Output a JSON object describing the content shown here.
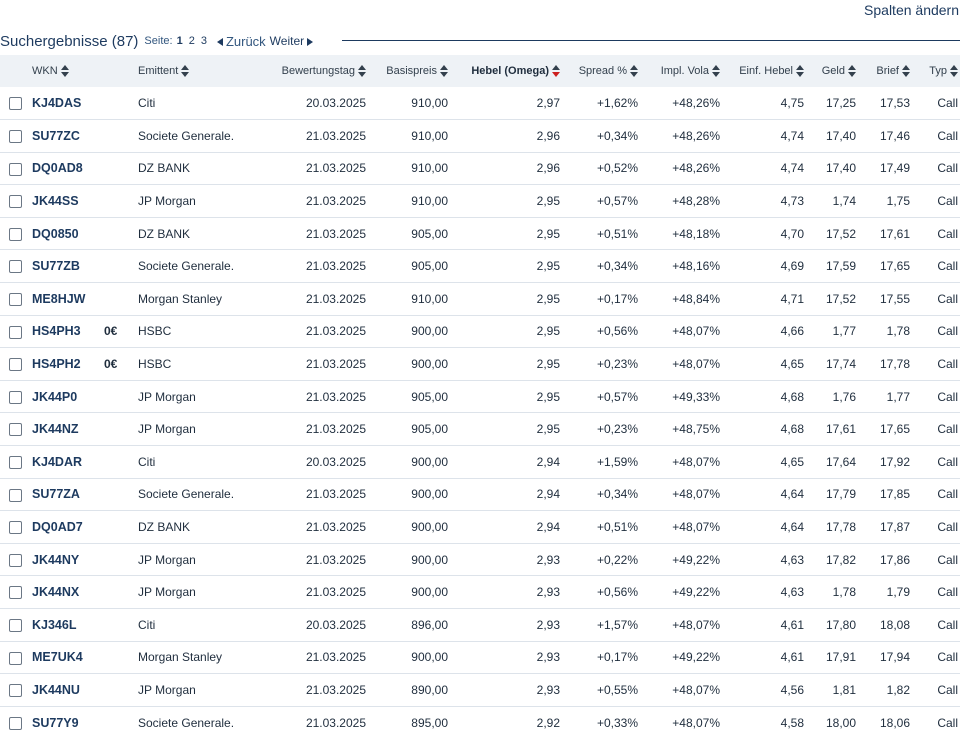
{
  "toolbar": {
    "columns_label": "Spalten ändern"
  },
  "results": {
    "title": "Suchergebnisse (87)",
    "page_label": "Seite:",
    "pages": [
      "1",
      "2",
      "3"
    ],
    "back_label": "Zurück",
    "next_label": "Weiter"
  },
  "columns": {
    "wkn": "WKN",
    "emittent": "Emittent",
    "bewertungstag": "Bewertungstag",
    "basispreis": "Basispreis",
    "hebel": "Hebel (Omega)",
    "spread": "Spread %",
    "vola": "Impl. Vola",
    "einf_hebel": "Einf. Hebel",
    "geld": "Geld",
    "brief": "Brief",
    "typ": "Typ"
  },
  "colors": {
    "accent": "#1d3a5f",
    "sort_active": "#cc1f1f",
    "header_bg": "#eef2f6"
  },
  "rows": [
    {
      "wkn": "KJ4DAS",
      "badge": "",
      "emittent": "Citi",
      "tag": "20.03.2025",
      "basis": "910,00",
      "hebel": "2,97",
      "spread": "+1,62%",
      "vola": "+48,26%",
      "einf": "4,75",
      "geld": "17,25",
      "brief": "17,53",
      "typ": "Call"
    },
    {
      "wkn": "SU77ZC",
      "badge": "",
      "emittent": "Societe Generale.",
      "tag": "21.03.2025",
      "basis": "910,00",
      "hebel": "2,96",
      "spread": "+0,34%",
      "vola": "+48,26%",
      "einf": "4,74",
      "geld": "17,40",
      "brief": "17,46",
      "typ": "Call"
    },
    {
      "wkn": "DQ0AD8",
      "badge": "",
      "emittent": "DZ BANK",
      "tag": "21.03.2025",
      "basis": "910,00",
      "hebel": "2,96",
      "spread": "+0,52%",
      "vola": "+48,26%",
      "einf": "4,74",
      "geld": "17,40",
      "brief": "17,49",
      "typ": "Call"
    },
    {
      "wkn": "JK44SS",
      "badge": "",
      "emittent": "JP Morgan",
      "tag": "21.03.2025",
      "basis": "910,00",
      "hebel": "2,95",
      "spread": "+0,57%",
      "vola": "+48,28%",
      "einf": "4,73",
      "geld": "1,74",
      "brief": "1,75",
      "typ": "Call"
    },
    {
      "wkn": "DQ0850",
      "badge": "",
      "emittent": "DZ BANK",
      "tag": "21.03.2025",
      "basis": "905,00",
      "hebel": "2,95",
      "spread": "+0,51%",
      "vola": "+48,18%",
      "einf": "4,70",
      "geld": "17,52",
      "brief": "17,61",
      "typ": "Call"
    },
    {
      "wkn": "SU77ZB",
      "badge": "",
      "emittent": "Societe Generale.",
      "tag": "21.03.2025",
      "basis": "905,00",
      "hebel": "2,95",
      "spread": "+0,34%",
      "vola": "+48,16%",
      "einf": "4,69",
      "geld": "17,59",
      "brief": "17,65",
      "typ": "Call"
    },
    {
      "wkn": "ME8HJW",
      "badge": "",
      "emittent": "Morgan Stanley",
      "tag": "21.03.2025",
      "basis": "910,00",
      "hebel": "2,95",
      "spread": "+0,17%",
      "vola": "+48,84%",
      "einf": "4,71",
      "geld": "17,52",
      "brief": "17,55",
      "typ": "Call"
    },
    {
      "wkn": "HS4PH3",
      "badge": "0€",
      "emittent": "HSBC",
      "tag": "21.03.2025",
      "basis": "900,00",
      "hebel": "2,95",
      "spread": "+0,56%",
      "vola": "+48,07%",
      "einf": "4,66",
      "geld": "1,77",
      "brief": "1,78",
      "typ": "Call"
    },
    {
      "wkn": "HS4PH2",
      "badge": "0€",
      "emittent": "HSBC",
      "tag": "21.03.2025",
      "basis": "900,00",
      "hebel": "2,95",
      "spread": "+0,23%",
      "vola": "+48,07%",
      "einf": "4,65",
      "geld": "17,74",
      "brief": "17,78",
      "typ": "Call"
    },
    {
      "wkn": "JK44P0",
      "badge": "",
      "emittent": "JP Morgan",
      "tag": "21.03.2025",
      "basis": "905,00",
      "hebel": "2,95",
      "spread": "+0,57%",
      "vola": "+49,33%",
      "einf": "4,68",
      "geld": "1,76",
      "brief": "1,77",
      "typ": "Call"
    },
    {
      "wkn": "JK44NZ",
      "badge": "",
      "emittent": "JP Morgan",
      "tag": "21.03.2025",
      "basis": "905,00",
      "hebel": "2,95",
      "spread": "+0,23%",
      "vola": "+48,75%",
      "einf": "4,68",
      "geld": "17,61",
      "brief": "17,65",
      "typ": "Call"
    },
    {
      "wkn": "KJ4DAR",
      "badge": "",
      "emittent": "Citi",
      "tag": "20.03.2025",
      "basis": "900,00",
      "hebel": "2,94",
      "spread": "+1,59%",
      "vola": "+48,07%",
      "einf": "4,65",
      "geld": "17,64",
      "brief": "17,92",
      "typ": "Call"
    },
    {
      "wkn": "SU77ZA",
      "badge": "",
      "emittent": "Societe Generale.",
      "tag": "21.03.2025",
      "basis": "900,00",
      "hebel": "2,94",
      "spread": "+0,34%",
      "vola": "+48,07%",
      "einf": "4,64",
      "geld": "17,79",
      "brief": "17,85",
      "typ": "Call"
    },
    {
      "wkn": "DQ0AD7",
      "badge": "",
      "emittent": "DZ BANK",
      "tag": "21.03.2025",
      "basis": "900,00",
      "hebel": "2,94",
      "spread": "+0,51%",
      "vola": "+48,07%",
      "einf": "4,64",
      "geld": "17,78",
      "brief": "17,87",
      "typ": "Call"
    },
    {
      "wkn": "JK44NY",
      "badge": "",
      "emittent": "JP Morgan",
      "tag": "21.03.2025",
      "basis": "900,00",
      "hebel": "2,93",
      "spread": "+0,22%",
      "vola": "+49,22%",
      "einf": "4,63",
      "geld": "17,82",
      "brief": "17,86",
      "typ": "Call"
    },
    {
      "wkn": "JK44NX",
      "badge": "",
      "emittent": "JP Morgan",
      "tag": "21.03.2025",
      "basis": "900,00",
      "hebel": "2,93",
      "spread": "+0,56%",
      "vola": "+49,22%",
      "einf": "4,63",
      "geld": "1,78",
      "brief": "1,79",
      "typ": "Call"
    },
    {
      "wkn": "KJ346L",
      "badge": "",
      "emittent": "Citi",
      "tag": "20.03.2025",
      "basis": "896,00",
      "hebel": "2,93",
      "spread": "+1,57%",
      "vola": "+48,07%",
      "einf": "4,61",
      "geld": "17,80",
      "brief": "18,08",
      "typ": "Call"
    },
    {
      "wkn": "ME7UK4",
      "badge": "",
      "emittent": "Morgan Stanley",
      "tag": "21.03.2025",
      "basis": "900,00",
      "hebel": "2,93",
      "spread": "+0,17%",
      "vola": "+49,22%",
      "einf": "4,61",
      "geld": "17,91",
      "brief": "17,94",
      "typ": "Call"
    },
    {
      "wkn": "JK44NU",
      "badge": "",
      "emittent": "JP Morgan",
      "tag": "21.03.2025",
      "basis": "890,00",
      "hebel": "2,93",
      "spread": "+0,55%",
      "vola": "+48,07%",
      "einf": "4,56",
      "geld": "1,81",
      "brief": "1,82",
      "typ": "Call"
    },
    {
      "wkn": "SU77Y9",
      "badge": "",
      "emittent": "Societe Generale.",
      "tag": "21.03.2025",
      "basis": "895,00",
      "hebel": "2,92",
      "spread": "+0,33%",
      "vola": "+48,07%",
      "einf": "4,58",
      "geld": "18,00",
      "brief": "18,06",
      "typ": "Call"
    }
  ]
}
